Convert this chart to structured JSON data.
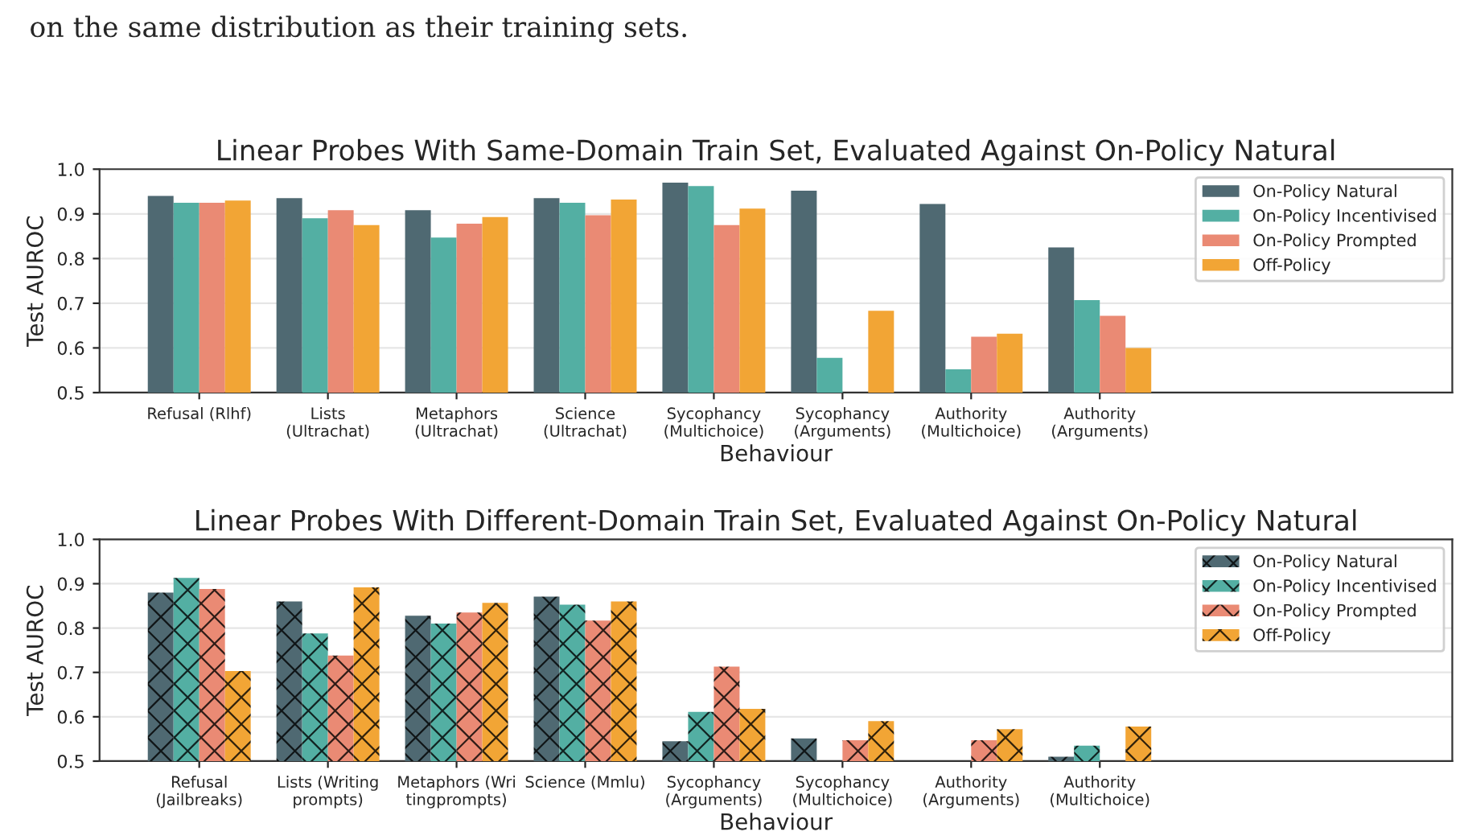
{
  "chart_data": [
    {
      "type": "bar",
      "title": "Linear Probes With Same-Domain Train Set, Evaluated Against On-Policy Natural",
      "xlabel": "Behaviour",
      "ylabel": "Test AUROC",
      "annotations": [
        "on the same distribution as their training sets."
      ],
      "categories": [
        "Refusal (Rlhf)",
        "Lists\n(Ultrachat)",
        "Metaphors\n(Ultrachat)",
        "Science\n(Ultrachat)",
        "Sycophancy\n(Multichoice)",
        "Sycophancy\n(Arguments)",
        "Authority\n(Multichoice)",
        "Authority\n(Arguments)"
      ],
      "series": [
        {
          "name": "On-Policy Natural",
          "color": "#4f6972",
          "values": [
            0.94,
            0.935,
            0.908,
            0.935,
            0.97,
            0.952,
            0.922,
            0.825
          ]
        },
        {
          "name": "On-Policy Incentivised",
          "color": "#53afa3",
          "values": [
            0.925,
            0.89,
            0.847,
            0.925,
            0.962,
            0.578,
            0.552,
            0.707
          ]
        },
        {
          "name": "On-Policy Prompted",
          "color": "#ea8a74",
          "values": [
            0.925,
            0.908,
            0.878,
            0.897,
            0.875,
            null,
            0.625,
            0.672
          ]
        },
        {
          "name": "Off-Policy",
          "color": "#f2a535",
          "values": [
            0.93,
            0.875,
            0.893,
            0.932,
            0.912,
            0.683,
            0.632,
            0.6
          ]
        }
      ],
      "ylim": [
        0.5,
        1.0
      ],
      "yticks": [
        0.5,
        0.6,
        0.7,
        0.8,
        0.9,
        {
          "value": 1.0,
          "label": "1.0"
        }
      ],
      "grid": "y",
      "legend": "top right"
    },
    {
      "type": "bar",
      "title": "Linear Probes With Different-Domain Train Set, Evaluated Against On-Policy Natural",
      "xlabel": "Behaviour",
      "ylabel": "Test AUROC",
      "categories": [
        "Refusal\n(Jailbreaks)",
        "Lists (Writing\nprompts)",
        "Metaphors (Wri\ntingprompts)",
        "Science (Mmlu)",
        "Sycophancy\n(Arguments)",
        "Sycophancy\n(Multichoice)",
        "Authority\n(Arguments)",
        "Authority\n(Multichoice)"
      ],
      "series": [
        {
          "name": "On-Policy Natural",
          "color": "#4f6972",
          "values": [
            0.88,
            0.86,
            0.828,
            0.871,
            0.545,
            0.551,
            null,
            0.51
          ]
        },
        {
          "name": "On-Policy Incentivised",
          "color": "#53afa3",
          "values": [
            0.913,
            0.788,
            0.81,
            0.853,
            0.611,
            null,
            null,
            0.535
          ]
        },
        {
          "name": "On-Policy Prompted",
          "color": "#ea8a74",
          "values": [
            0.888,
            0.738,
            0.835,
            0.817,
            0.713,
            0.547,
            0.547,
            null
          ]
        },
        {
          "name": "Off-Policy",
          "color": "#f2a535",
          "values": [
            0.703,
            0.892,
            0.857,
            0.86,
            0.618,
            0.59,
            0.572,
            0.578
          ]
        }
      ],
      "ylim": [
        0.5,
        1.0
      ],
      "yticks": [
        0.5,
        0.6,
        0.7,
        0.8,
        0.9,
        {
          "value": 1.0,
          "label": "1.0"
        }
      ],
      "grid": "y",
      "legend": "top right"
    }
  ]
}
